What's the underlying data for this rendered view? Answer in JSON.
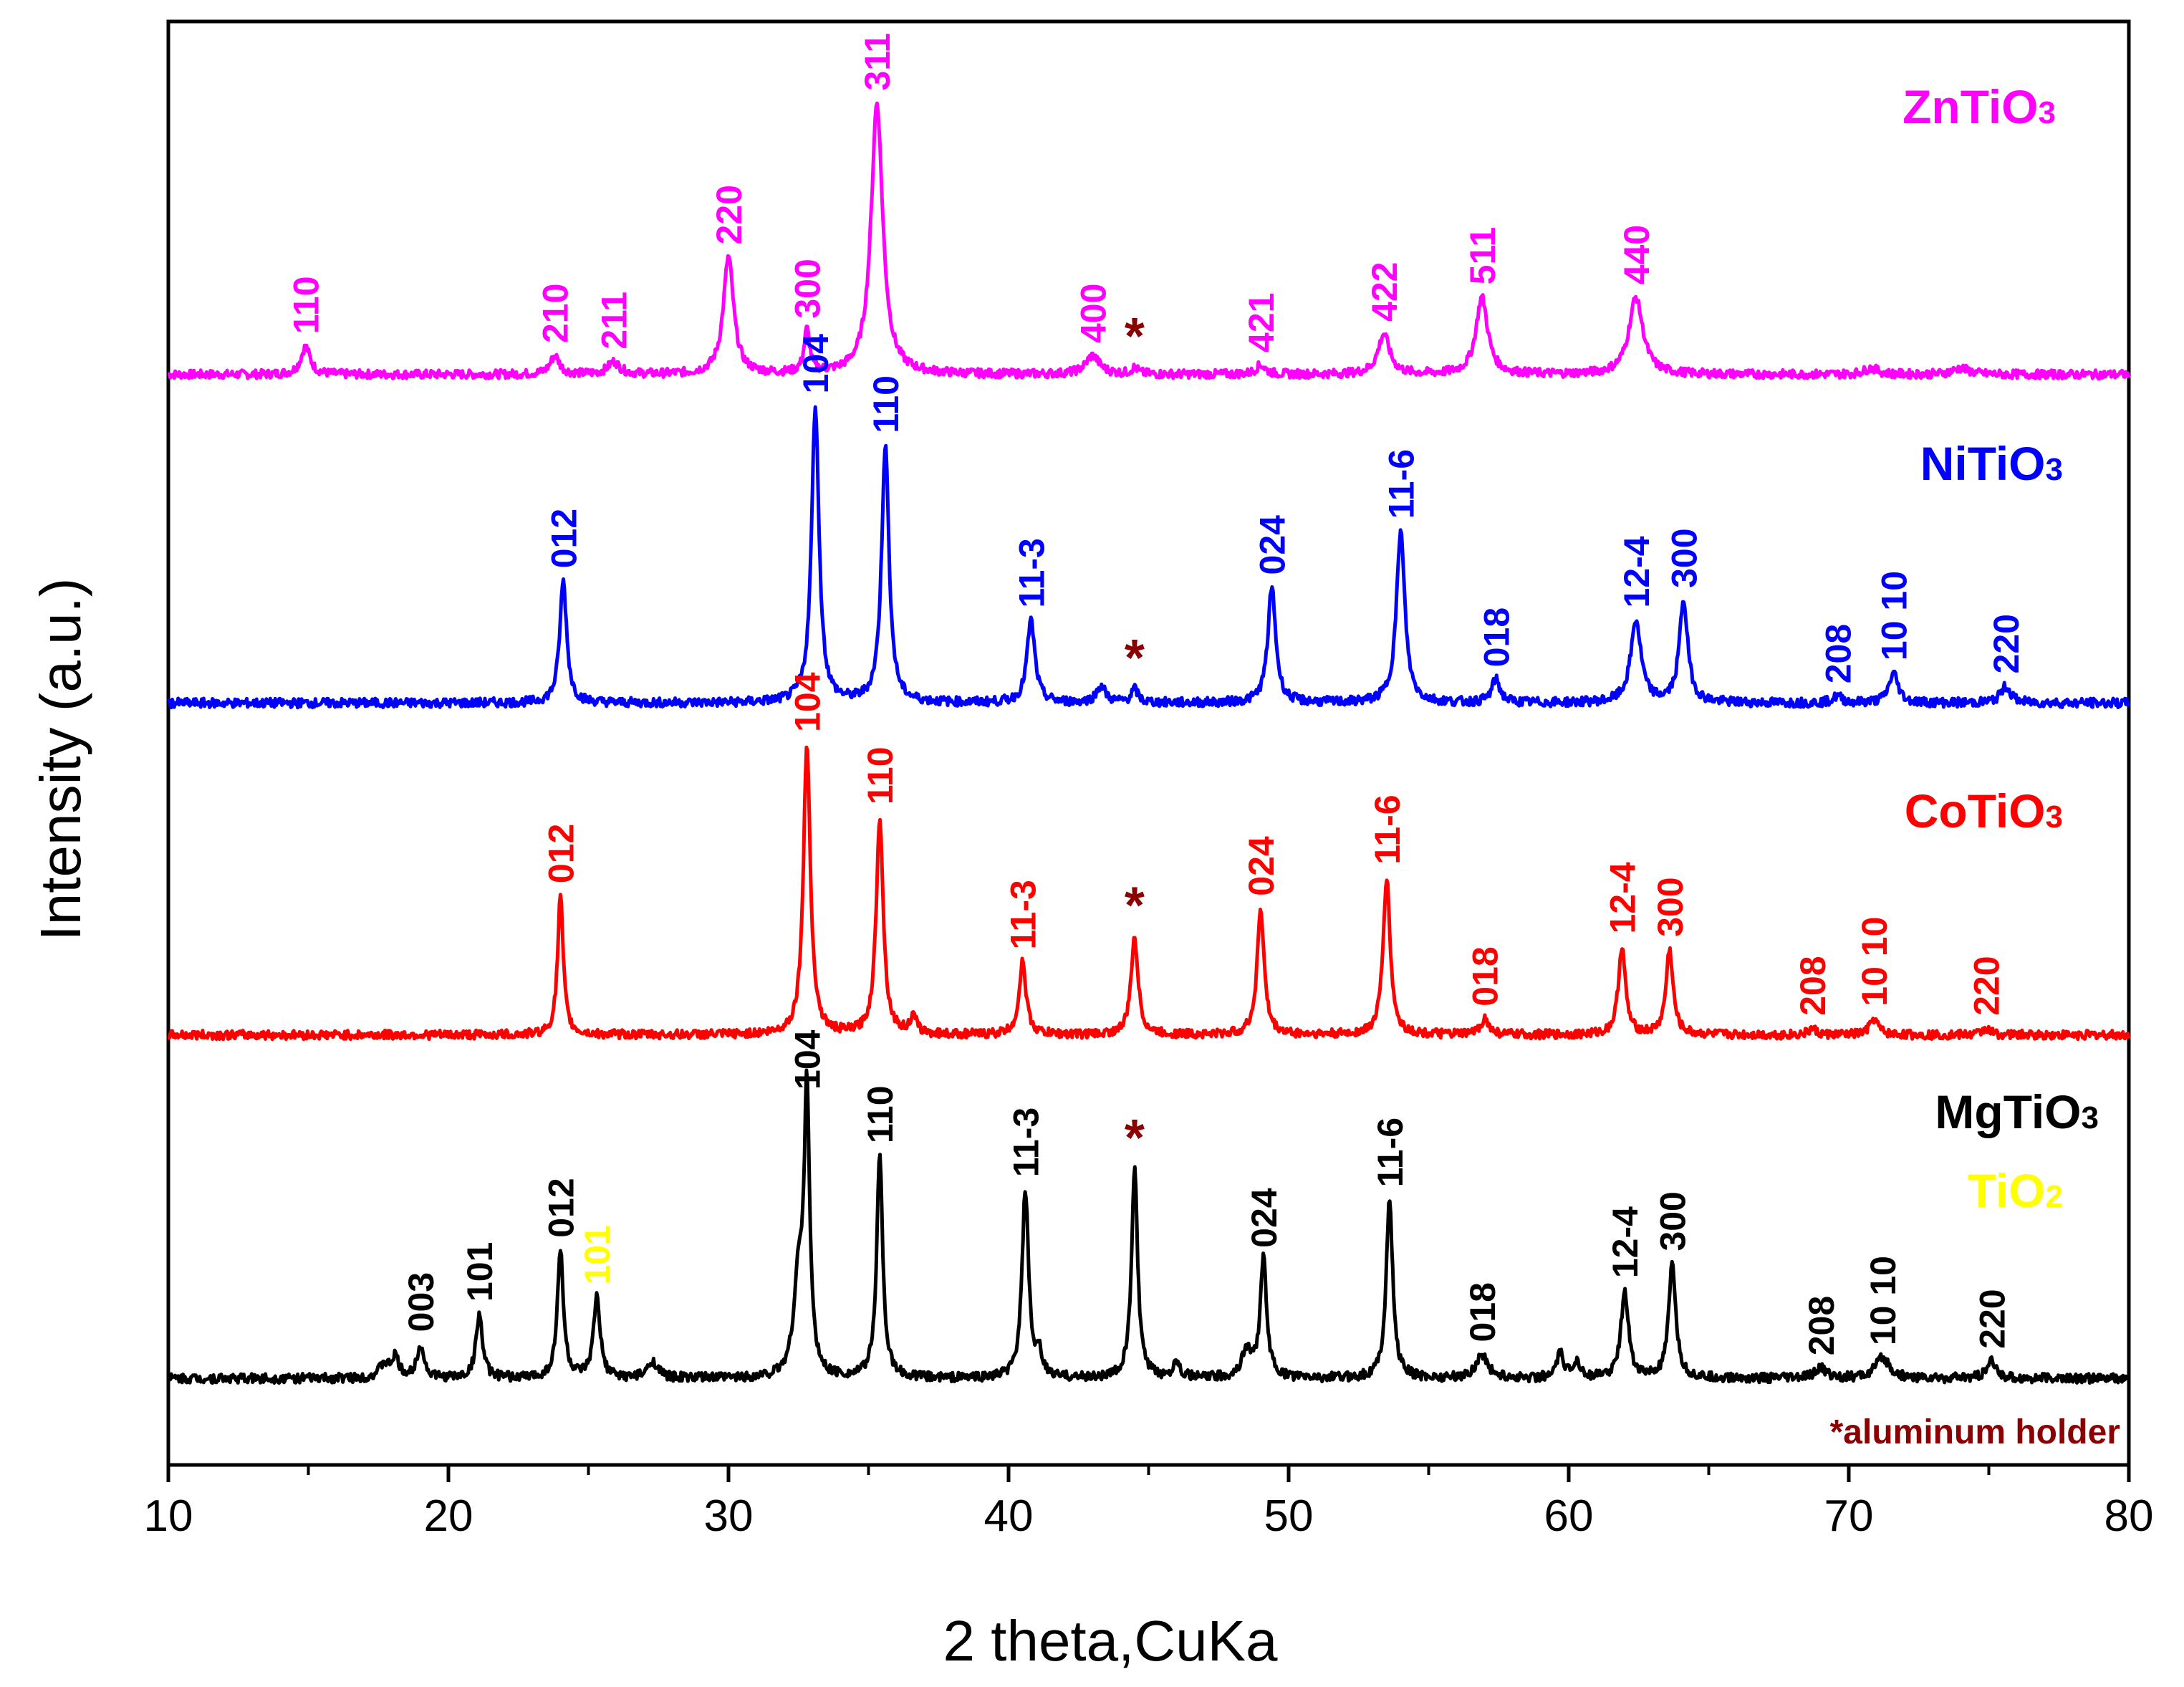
{
  "chart_data": {
    "type": "line",
    "title": "",
    "xlabel": "2 theta,CuKa",
    "ylabel": "Intensity (a.u.)",
    "xlim": [
      10,
      80
    ],
    "xticks": [
      10,
      20,
      30,
      40,
      50,
      60,
      70,
      80
    ],
    "yticks": [],
    "note": "*aluminum holder",
    "colors": {
      "ZnTiO3": "#ff00ff",
      "NiTiO3": "#0000ff",
      "CoTiO3": "#ff0000",
      "MgTiO3": "#000000",
      "TiO2": "#ffff00",
      "holder": "#8b0000"
    },
    "series": [
      {
        "name": "ZnTiO3",
        "legend": "ZnTiO",
        "legend_sub": "3",
        "color": "#ff00ff",
        "baseline": 0.0,
        "peaks": [
          {
            "x": 14.9,
            "h": 0.09,
            "w": 0.2,
            "label": "110"
          },
          {
            "x": 23.8,
            "h": 0.06,
            "w": 0.2,
            "label": "210"
          },
          {
            "x": 25.9,
            "h": 0.04,
            "w": 0.25,
            "label": "211"
          },
          {
            "x": 30.0,
            "h": 0.38,
            "w": 0.22,
            "label": "220"
          },
          {
            "x": 32.8,
            "h": 0.14,
            "w": 0.12,
            "label": "300"
          },
          {
            "x": 35.3,
            "h": 0.88,
            "w": 0.25,
            "label": "311"
          },
          {
            "x": 43.0,
            "h": 0.06,
            "w": 0.3,
            "label": "400"
          },
          {
            "x": 44.5,
            "h": 0.02,
            "w": 0.15,
            "label": "*"
          },
          {
            "x": 49.0,
            "h": 0.03,
            "w": 0.2,
            "label": "421"
          },
          {
            "x": 53.4,
            "h": 0.13,
            "w": 0.25,
            "label": "422"
          },
          {
            "x": 56.9,
            "h": 0.25,
            "w": 0.25,
            "label": "511"
          },
          {
            "x": 62.4,
            "h": 0.25,
            "w": 0.3,
            "label": "440"
          },
          {
            "x": 70.8,
            "h": 0.02,
            "w": 0.3,
            "label": ""
          },
          {
            "x": 74.0,
            "h": 0.02,
            "w": 0.35,
            "label": ""
          }
        ]
      },
      {
        "name": "NiTiO3",
        "legend": "NiTiO",
        "legend_sub": "3",
        "color": "#0000ff",
        "baseline": 0.0,
        "peaks": [
          {
            "x": 24.1,
            "h": 0.37,
            "w": 0.15,
            "label": "012"
          },
          {
            "x": 33.1,
            "h": 0.9,
            "w": 0.16,
            "label": "104"
          },
          {
            "x": 35.6,
            "h": 0.78,
            "w": 0.16,
            "label": "110"
          },
          {
            "x": 40.8,
            "h": 0.25,
            "w": 0.17,
            "label": "11-3"
          },
          {
            "x": 43.3,
            "h": 0.05,
            "w": 0.2,
            "label": ""
          },
          {
            "x": 44.5,
            "h": 0.04,
            "w": 0.15,
            "label": "*"
          },
          {
            "x": 49.4,
            "h": 0.35,
            "w": 0.17,
            "label": "024"
          },
          {
            "x": 54.0,
            "h": 0.52,
            "w": 0.18,
            "label": "11-6"
          },
          {
            "x": 57.4,
            "h": 0.07,
            "w": 0.18,
            "label": "018"
          },
          {
            "x": 62.4,
            "h": 0.25,
            "w": 0.22,
            "label": "12-4"
          },
          {
            "x": 64.1,
            "h": 0.31,
            "w": 0.18,
            "label": "300"
          },
          {
            "x": 69.6,
            "h": 0.02,
            "w": 0.2,
            "label": "208"
          },
          {
            "x": 71.6,
            "h": 0.09,
            "w": 0.2,
            "label": "10 10"
          },
          {
            "x": 75.6,
            "h": 0.05,
            "w": 0.22,
            "label": "220"
          }
        ]
      },
      {
        "name": "CoTiO3",
        "legend": "CoTiO",
        "legend_sub": "3",
        "color": "#ff0000",
        "baseline": 0.0,
        "peaks": [
          {
            "x": 24.0,
            "h": 0.44,
            "w": 0.12,
            "label": "012"
          },
          {
            "x": 32.8,
            "h": 0.92,
            "w": 0.15,
            "label": "104"
          },
          {
            "x": 35.4,
            "h": 0.69,
            "w": 0.15,
            "label": "110"
          },
          {
            "x": 36.6,
            "h": 0.05,
            "w": 0.15,
            "label": ""
          },
          {
            "x": 40.5,
            "h": 0.23,
            "w": 0.15,
            "label": "11-3"
          },
          {
            "x": 44.5,
            "h": 0.31,
            "w": 0.15,
            "label": "*"
          },
          {
            "x": 49.0,
            "h": 0.4,
            "w": 0.15,
            "label": "024"
          },
          {
            "x": 53.5,
            "h": 0.5,
            "w": 0.15,
            "label": "11-6"
          },
          {
            "x": 57.0,
            "h": 0.05,
            "w": 0.18,
            "label": "018"
          },
          {
            "x": 61.9,
            "h": 0.28,
            "w": 0.15,
            "label": "12-4"
          },
          {
            "x": 63.6,
            "h": 0.27,
            "w": 0.15,
            "label": "300"
          },
          {
            "x": 68.7,
            "h": 0.02,
            "w": 0.15,
            "label": "208"
          },
          {
            "x": 70.9,
            "h": 0.05,
            "w": 0.18,
            "label": "10 10"
          },
          {
            "x": 74.9,
            "h": 0.02,
            "w": 0.18,
            "label": "220"
          }
        ]
      },
      {
        "name": "MgTiO3",
        "legend": "MgTiO",
        "legend_sub": "3",
        "color": "#000000",
        "baseline": 0.0,
        "peaks": [
          {
            "x": 17.7,
            "h": 0.04,
            "w": 0.2,
            "label": ""
          },
          {
            "x": 18.1,
            "h": 0.06,
            "w": 0.15,
            "label": ""
          },
          {
            "x": 19.0,
            "h": 0.1,
            "w": 0.15,
            "label": "003"
          },
          {
            "x": 21.1,
            "h": 0.19,
            "w": 0.14,
            "label": "101"
          },
          {
            "x": 24.0,
            "h": 0.38,
            "w": 0.13,
            "label": "012"
          },
          {
            "x": 25.3,
            "h": 0.24,
            "w": 0.14,
            "label": "101",
            "color": "#ffff00"
          },
          {
            "x": 27.3,
            "h": 0.05,
            "w": 0.2,
            "label": ""
          },
          {
            "x": 32.5,
            "h": 0.28,
            "w": 0.2,
            "label": ""
          },
          {
            "x": 32.8,
            "h": 0.82,
            "w": 0.12,
            "label": "104"
          },
          {
            "x": 35.4,
            "h": 0.66,
            "w": 0.13,
            "label": "110"
          },
          {
            "x": 40.6,
            "h": 0.56,
            "w": 0.14,
            "label": "11-3"
          },
          {
            "x": 41.1,
            "h": 0.06,
            "w": 0.12,
            "label": ""
          },
          {
            "x": 44.5,
            "h": 0.62,
            "w": 0.13,
            "label": "*"
          },
          {
            "x": 46.0,
            "h": 0.05,
            "w": 0.15,
            "label": ""
          },
          {
            "x": 48.5,
            "h": 0.08,
            "w": 0.2,
            "label": ""
          },
          {
            "x": 49.1,
            "h": 0.35,
            "w": 0.14,
            "label": "024"
          },
          {
            "x": 53.6,
            "h": 0.53,
            "w": 0.14,
            "label": "11-6"
          },
          {
            "x": 56.9,
            "h": 0.07,
            "w": 0.25,
            "label": "018"
          },
          {
            "x": 59.7,
            "h": 0.07,
            "w": 0.15,
            "label": ""
          },
          {
            "x": 60.3,
            "h": 0.05,
            "w": 0.15,
            "label": ""
          },
          {
            "x": 62.0,
            "h": 0.26,
            "w": 0.16,
            "label": "12-4"
          },
          {
            "x": 63.7,
            "h": 0.34,
            "w": 0.15,
            "label": "300"
          },
          {
            "x": 69.0,
            "h": 0.03,
            "w": 0.25,
            "label": "208"
          },
          {
            "x": 71.2,
            "h": 0.06,
            "w": 0.3,
            "label": "10 10"
          },
          {
            "x": 75.1,
            "h": 0.05,
            "w": 0.2,
            "label": "220"
          }
        ]
      }
    ],
    "extra_legend": {
      "text": "TiO",
      "sub": "2",
      "color": "#ffff00"
    }
  }
}
